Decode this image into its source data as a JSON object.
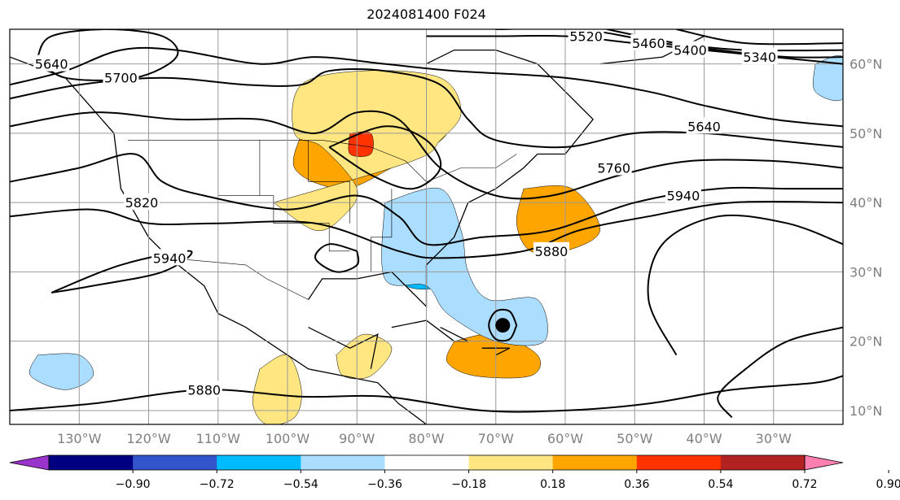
{
  "title": "2024081400 F024",
  "map": {
    "projection": "lat-lon",
    "lon_range": [
      -140,
      -20
    ],
    "lat_range": [
      8,
      65
    ],
    "lon_ticks": [
      {
        "lon": -130,
        "label": "130°W"
      },
      {
        "lon": -120,
        "label": "120°W"
      },
      {
        "lon": -110,
        "label": "110°W"
      },
      {
        "lon": -100,
        "label": "100°W"
      },
      {
        "lon": -90,
        "label": "90°W"
      },
      {
        "lon": -80,
        "label": "80°W"
      },
      {
        "lon": -70,
        "label": "70°W"
      },
      {
        "lon": -60,
        "label": "60°W"
      },
      {
        "lon": -50,
        "label": "50°W"
      },
      {
        "lon": -40,
        "label": "40°W"
      },
      {
        "lon": -30,
        "label": "30°W"
      }
    ],
    "lat_ticks": [
      {
        "lat": 60,
        "label": "60°N"
      },
      {
        "lat": 50,
        "label": "50°N"
      },
      {
        "lat": 40,
        "label": "40°N"
      },
      {
        "lat": 30,
        "label": "30°N"
      },
      {
        "lat": 20,
        "label": "20°N"
      },
      {
        "lat": 10,
        "label": "10°N"
      }
    ],
    "gridlines": true,
    "contour_color": "#000000",
    "contour_labels": [
      {
        "text": "5640",
        "lon": -134,
        "lat": 60
      },
      {
        "text": "5700",
        "lon": -124,
        "lat": 58
      },
      {
        "text": "5820",
        "lon": -121,
        "lat": 40
      },
      {
        "text": "5940",
        "lon": -117,
        "lat": 32
      },
      {
        "text": "5880",
        "lon": -112,
        "lat": 13
      },
      {
        "text": "5520",
        "lon": -57,
        "lat": 64
      },
      {
        "text": "5460",
        "lon": -48,
        "lat": 63
      },
      {
        "text": "5400",
        "lon": -42,
        "lat": 62
      },
      {
        "text": "5340",
        "lon": -32,
        "lat": 61
      },
      {
        "text": "5640",
        "lon": -40,
        "lat": 51
      },
      {
        "text": "5760",
        "lon": -53,
        "lat": 45
      },
      {
        "text": "5940",
        "lon": -43,
        "lat": 41
      },
      {
        "text": "5880",
        "lon": -62,
        "lat": 33
      }
    ],
    "storm_marker": {
      "lon": -69,
      "lat": 22.3
    }
  },
  "colorbar": {
    "colors": [
      "#9933cc",
      "#000080",
      "#3355cc",
      "#00bbff",
      "#aaddff",
      "#ffffff",
      "#ffe680",
      "#ffa500",
      "#ff3300",
      "#b22222",
      "#ff80b0"
    ],
    "tick_labels": [
      "−0.90",
      "−0.72",
      "−0.54",
      "−0.36",
      "−0.18",
      "0.18",
      "0.36",
      "0.54",
      "0.72",
      "0.90"
    ]
  },
  "shading": [
    {
      "level": 0.36,
      "color": "#ffa500",
      "regions": [
        [
          [
            -97,
            52
          ],
          [
            -90,
            54
          ],
          [
            -84,
            57
          ],
          [
            -80,
            58
          ],
          [
            -76,
            55
          ],
          [
            -77,
            50
          ],
          [
            -81,
            47
          ],
          [
            -85,
            45
          ],
          [
            -92,
            42
          ],
          [
            -99,
            45
          ]
        ],
        [
          [
            -66,
            42
          ],
          [
            -59,
            42
          ],
          [
            -55,
            36
          ],
          [
            -60,
            33
          ],
          [
            -65,
            33
          ],
          [
            -67,
            37
          ]
        ],
        [
          [
            -76,
            20
          ],
          [
            -70,
            21
          ],
          [
            -64,
            18
          ],
          [
            -65,
            15
          ],
          [
            -73,
            15
          ],
          [
            -77,
            17
          ]
        ]
      ]
    },
    {
      "level": 0.18,
      "color": "#ffe680",
      "regions": [
        [
          [
            -102,
            40
          ],
          [
            -96,
            36
          ],
          [
            -92,
            38
          ],
          [
            -90,
            42
          ],
          [
            -95,
            48
          ],
          [
            -99,
            50
          ],
          [
            -98,
            57
          ],
          [
            -89,
            59
          ],
          [
            -78,
            58
          ],
          [
            -75,
            53
          ],
          [
            -78,
            49
          ],
          [
            -82,
            46
          ]
        ],
        [
          [
            -93,
            18
          ],
          [
            -89,
            21
          ],
          [
            -85,
            19
          ],
          [
            -88,
            15
          ],
          [
            -92,
            15
          ]
        ],
        [
          [
            -104,
            16
          ],
          [
            -100,
            18
          ],
          [
            -98,
            13
          ],
          [
            -99,
            9
          ],
          [
            -103,
            8
          ],
          [
            -105,
            11
          ]
        ]
      ]
    },
    {
      "level": -0.36,
      "color": "#00bbff",
      "regions": [
        [
          [
            -85,
            39
          ],
          [
            -79,
            40
          ],
          [
            -76,
            37
          ],
          [
            -76,
            32
          ],
          [
            -78,
            28
          ],
          [
            -83,
            28
          ],
          [
            -86,
            32
          ]
        ],
        [
          [
            -68,
            26
          ],
          [
            -64,
            24
          ],
          [
            -65,
            21
          ],
          [
            -70,
            22
          ]
        ]
      ]
    },
    {
      "level": -0.18,
      "color": "#aaddff",
      "regions": [
        [
          [
            -86,
            40
          ],
          [
            -78,
            42
          ],
          [
            -75,
            36
          ],
          [
            -74,
            30
          ],
          [
            -71,
            26
          ],
          [
            -64,
            26
          ],
          [
            -63,
            20
          ],
          [
            -70,
            20
          ],
          [
            -77,
            24
          ],
          [
            -80,
            28
          ],
          [
            -86,
            29
          ]
        ],
        [
          [
            -136,
            18
          ],
          [
            -130,
            18
          ],
          [
            -128,
            15
          ],
          [
            -132,
            13
          ],
          [
            -137,
            15
          ]
        ],
        [
          [
            -24,
            60
          ],
          [
            -20,
            61
          ],
          [
            -20,
            55
          ],
          [
            -24,
            56
          ]
        ]
      ]
    },
    {
      "level": 0.54,
      "color": "#ff3300",
      "regions": [
        [
          [
            -91,
            50
          ],
          [
            -88,
            50
          ],
          [
            -88,
            47
          ],
          [
            -91,
            47
          ]
        ]
      ]
    }
  ],
  "contours": [
    {
      "label": "5640",
      "points": [
        [
          -140,
          57
        ],
        [
          -132,
          59
        ],
        [
          -124,
          62
        ],
        [
          -116,
          62
        ],
        [
          -104,
          60
        ],
        [
          -96,
          61
        ],
        [
          -86,
          60
        ],
        [
          -76,
          59
        ],
        [
          -60,
          58
        ],
        [
          -48,
          56
        ],
        [
          -40,
          54
        ],
        [
          -30,
          52
        ],
        [
          -20,
          51
        ]
      ]
    },
    {
      "label": "5700",
      "points": [
        [
          -140,
          55
        ],
        [
          -130,
          57
        ],
        [
          -118,
          58
        ],
        [
          -106,
          57
        ],
        [
          -98,
          57
        ],
        [
          -94,
          59
        ],
        [
          -86,
          59
        ],
        [
          -78,
          57
        ],
        [
          -74,
          52
        ],
        [
          -70,
          49
        ],
        [
          -60,
          48
        ],
        [
          -50,
          50
        ],
        [
          -40,
          50
        ],
        [
          -30,
          49
        ],
        [
          -20,
          48
        ]
      ]
    },
    {
      "label": "5760",
      "points": [
        [
          -140,
          51
        ],
        [
          -128,
          53
        ],
        [
          -116,
          52
        ],
        [
          -104,
          52
        ],
        [
          -96,
          50
        ],
        [
          -90,
          53
        ],
        [
          -84,
          52
        ],
        [
          -78,
          45
        ],
        [
          -70,
          41
        ],
        [
          -62,
          41
        ],
        [
          -52,
          44
        ],
        [
          -42,
          46
        ],
        [
          -30,
          46
        ],
        [
          -20,
          45
        ]
      ]
    },
    {
      "label": "5820",
      "points": [
        [
          -140,
          43
        ],
        [
          -130,
          45
        ],
        [
          -122,
          47
        ],
        [
          -118,
          43
        ],
        [
          -112,
          41
        ],
        [
          -100,
          39
        ],
        [
          -90,
          41
        ],
        [
          -84,
          38
        ],
        [
          -80,
          34
        ],
        [
          -72,
          35
        ],
        [
          -62,
          36
        ],
        [
          -50,
          40
        ],
        [
          -38,
          42
        ],
        [
          -28,
          42
        ],
        [
          -20,
          42
        ]
      ]
    },
    {
      "label": "5880",
      "points": [
        [
          -140,
          38
        ],
        [
          -128,
          39
        ],
        [
          -120,
          37
        ],
        [
          -110,
          37
        ],
        [
          -96,
          37
        ],
        [
          -84,
          33
        ],
        [
          -78,
          32
        ],
        [
          -66,
          33
        ],
        [
          -58,
          36
        ],
        [
          -48,
          38
        ],
        [
          -36,
          40
        ],
        [
          -20,
          40
        ]
      ]
    },
    {
      "label": "5940",
      "points": [
        [
          -134,
          27
        ],
        [
          -124,
          31
        ],
        [
          -114,
          33
        ],
        [
          -118,
          30
        ],
        [
          -128,
          28
        ],
        [
          -134,
          27
        ]
      ]
    },
    {
      "label": "5880",
      "points": [
        [
          -140,
          10
        ],
        [
          -128,
          11
        ],
        [
          -112,
          13
        ],
        [
          -98,
          12
        ],
        [
          -86,
          12
        ],
        [
          -72,
          10
        ],
        [
          -60,
          10
        ],
        [
          -48,
          11
        ],
        [
          -36,
          13
        ],
        [
          -24,
          14
        ],
        [
          -20,
          15
        ]
      ]
    },
    {
      "label": "",
      "points": [
        [
          -44,
          18
        ],
        [
          -48,
          26
        ],
        [
          -46,
          34
        ],
        [
          -38,
          38
        ],
        [
          -28,
          37
        ],
        [
          -20,
          34
        ]
      ]
    },
    {
      "label": "",
      "points": [
        [
          -20,
          22
        ],
        [
          -28,
          20
        ],
        [
          -34,
          16
        ],
        [
          -38,
          12
        ],
        [
          -36,
          9
        ]
      ]
    },
    {
      "label": "5520",
      "points": [
        [
          -80,
          64
        ],
        [
          -70,
          64
        ],
        [
          -60,
          64
        ],
        [
          -50,
          63
        ],
        [
          -40,
          62
        ],
        [
          -30,
          61
        ],
        [
          -20,
          60
        ]
      ]
    },
    {
      "label": "5460",
      "points": [
        [
          -70,
          65
        ],
        [
          -58,
          65
        ],
        [
          -46,
          63
        ],
        [
          -38,
          62
        ],
        [
          -28,
          61
        ],
        [
          -20,
          61
        ]
      ]
    },
    {
      "label": "5400",
      "points": [
        [
          -54,
          65
        ],
        [
          -44,
          63
        ],
        [
          -34,
          62
        ],
        [
          -20,
          62
        ]
      ]
    },
    {
      "label": "5340",
      "points": [
        [
          -44,
          65
        ],
        [
          -34,
          63
        ],
        [
          -20,
          63
        ]
      ]
    },
    {
      "label": "",
      "points": [
        [
          -136,
          61
        ],
        [
          -134,
          64
        ],
        [
          -126,
          65
        ],
        [
          -118,
          64
        ],
        [
          -116,
          61
        ],
        [
          -122,
          58
        ],
        [
          -132,
          58
        ],
        [
          -136,
          61
        ]
      ]
    },
    {
      "label": "",
      "points": [
        [
          -90,
          33
        ],
        [
          -94,
          34
        ],
        [
          -96,
          32
        ],
        [
          -93,
          30
        ],
        [
          -90,
          31
        ],
        [
          -90,
          33
        ]
      ]
    },
    {
      "label": "",
      "points": [
        [
          -67,
          22.3
        ],
        [
          -68,
          24.3
        ],
        [
          -70,
          24.3
        ],
        [
          -71,
          22.3
        ],
        [
          -70,
          20.3
        ],
        [
          -68,
          20.3
        ],
        [
          -67,
          22.3
        ]
      ]
    },
    {
      "label": "",
      "points": [
        [
          -94,
          48
        ],
        [
          -86,
          51
        ],
        [
          -80,
          49
        ],
        [
          -78,
          45
        ],
        [
          -82,
          42
        ],
        [
          -88,
          44
        ],
        [
          -94,
          48
        ]
      ]
    }
  ],
  "land_outlines": [
    [
      [
        -140,
        61
      ],
      [
        -132,
        58
      ],
      [
        -125,
        50
      ],
      [
        -124,
        42
      ],
      [
        -120,
        35
      ],
      [
        -117,
        32
      ],
      [
        -112,
        28
      ],
      [
        -110,
        24
      ],
      [
        -106,
        22
      ],
      [
        -97,
        16
      ],
      [
        -92,
        15
      ],
      [
        -87,
        14
      ],
      [
        -84,
        11
      ],
      [
        -80,
        8
      ]
    ],
    [
      [
        -97,
        26
      ],
      [
        -95,
        29
      ],
      [
        -90,
        29
      ],
      [
        -85,
        30
      ],
      [
        -82,
        27
      ],
      [
        -80,
        25
      ],
      [
        -80,
        31
      ],
      [
        -76,
        35
      ],
      [
        -74,
        40
      ],
      [
        -70,
        42
      ],
      [
        -66,
        45
      ],
      [
        -64,
        47
      ],
      [
        -60,
        47
      ],
      [
        -56,
        52
      ],
      [
        -60,
        56
      ],
      [
        -64,
        60
      ],
      [
        -70,
        62
      ],
      [
        -76,
        62
      ],
      [
        -80,
        60
      ]
    ],
    [
      [
        -97,
        22
      ],
      [
        -91,
        19
      ],
      [
        -87,
        21
      ],
      [
        -88,
        16
      ]
    ],
    [
      [
        -85,
        22
      ],
      [
        -80,
        23
      ],
      [
        -76,
        20
      ],
      [
        -74,
        20
      ],
      [
        -78,
        22
      ]
    ],
    [
      [
        -72,
        19
      ],
      [
        -68,
        19
      ],
      [
        -70,
        18
      ]
    ],
    [
      [
        -55,
        60
      ],
      [
        -46,
        61
      ],
      [
        -40,
        64
      ]
    ]
  ],
  "border_lines": [
    [
      [
        -123,
        49
      ],
      [
        -95,
        49
      ],
      [
        -88,
        48
      ],
      [
        -83,
        46
      ],
      [
        -80,
        43
      ],
      [
        -75,
        45
      ],
      [
        -70,
        45
      ],
      [
        -67,
        47
      ]
    ],
    [
      [
        -117,
        32
      ],
      [
        -106,
        31
      ],
      [
        -103,
        29
      ],
      [
        -97,
        26
      ]
    ],
    [
      [
        -110,
        49
      ],
      [
        -110,
        41
      ],
      [
        -102,
        41
      ],
      [
        -102,
        37
      ],
      [
        -94,
        37
      ],
      [
        -94,
        33
      ],
      [
        -91,
        33
      ]
    ],
    [
      [
        -104,
        49
      ],
      [
        -104,
        41
      ]
    ],
    [
      [
        -97,
        49
      ],
      [
        -97,
        43
      ],
      [
        -91,
        43
      ],
      [
        -91,
        37
      ]
    ],
    [
      [
        -85,
        42
      ],
      [
        -85,
        35
      ],
      [
        -88,
        35
      ],
      [
        -88,
        30
      ]
    ]
  ]
}
